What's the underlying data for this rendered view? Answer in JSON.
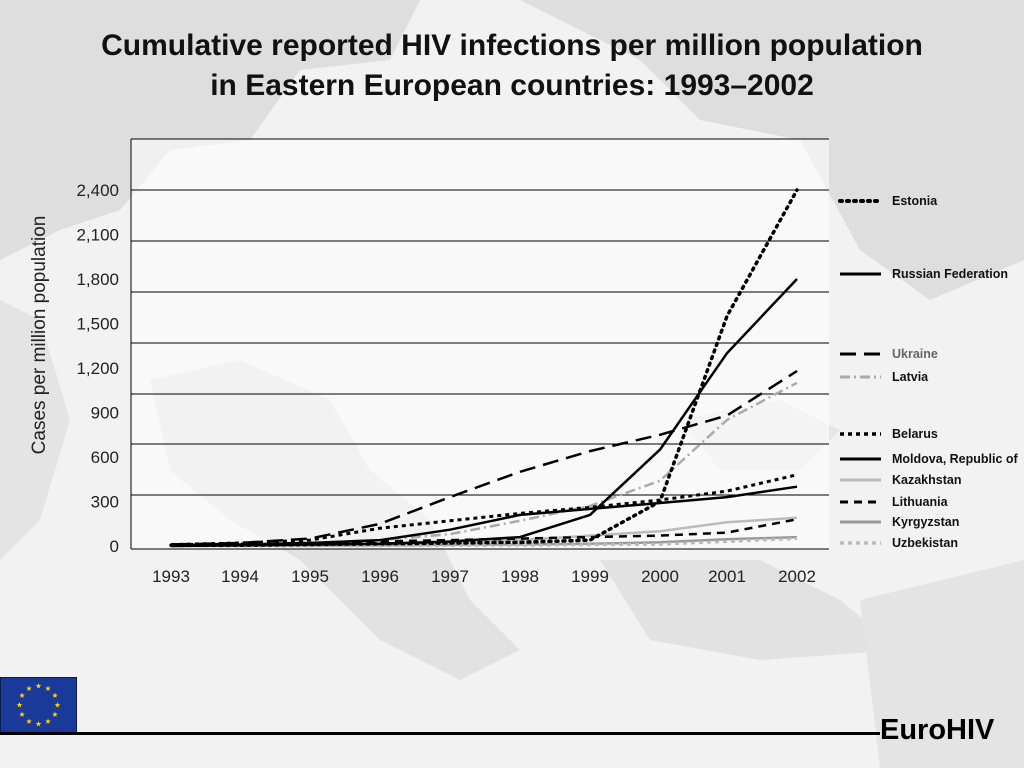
{
  "slide": {
    "title_line1": "Cumulative reported HIV infections per million population",
    "title_line2": "in Eastern European countries: 1993–2002",
    "footer_brand": "EuroHIV"
  },
  "chart_data": {
    "type": "line",
    "title": "Cumulative reported HIV infections per million population in Eastern European countries: 1993–2002",
    "xlabel": "",
    "ylabel": "Cases per million population",
    "x": [
      "1993",
      "1994",
      "1995",
      "1996",
      "1997",
      "1998",
      "1999",
      "2000",
      "2001",
      "2002"
    ],
    "y_ticks": [
      0,
      300,
      600,
      900,
      1200,
      1500,
      1800,
      2100,
      2400
    ],
    "y_tick_labels": [
      "0",
      "300",
      "600",
      "900",
      "1,200",
      "1,500",
      "1,800",
      "2,100",
      "2,400"
    ],
    "ylim": [
      0,
      2400
    ],
    "grid": true,
    "legend_position": "right",
    "series": [
      {
        "name": "Estonia",
        "color": "#000000",
        "dash": "dotted",
        "values": [
          5,
          5,
          10,
          15,
          20,
          25,
          40,
          300,
          1550,
          2400
        ]
      },
      {
        "name": "Russian Federation",
        "color": "#000000",
        "dash": "solid",
        "values": [
          0,
          5,
          10,
          15,
          30,
          60,
          210,
          650,
          1300,
          1800
        ]
      },
      {
        "name": "Ukraine",
        "color": "#000000",
        "dash": "longdash",
        "values": [
          10,
          20,
          50,
          150,
          330,
          500,
          640,
          750,
          880,
          1180
        ]
      },
      {
        "name": "Latvia",
        "color": "#aaaaaa",
        "dash": "dashdot",
        "values": [
          5,
          10,
          20,
          40,
          80,
          170,
          270,
          440,
          850,
          1100
        ]
      },
      {
        "name": "Belarus",
        "color": "#000000",
        "dash": "shortdash",
        "values": [
          10,
          20,
          40,
          120,
          170,
          220,
          260,
          310,
          370,
          480
        ]
      },
      {
        "name": "Moldova, Republic of",
        "color": "#000000",
        "dash": "solid",
        "values": [
          5,
          10,
          20,
          40,
          110,
          210,
          250,
          290,
          330,
          400
        ]
      },
      {
        "name": "Kazakhstan",
        "color": "#bbbbbb",
        "dash": "solid",
        "values": [
          2,
          5,
          10,
          15,
          25,
          40,
          70,
          100,
          160,
          190
        ]
      },
      {
        "name": "Lithuania",
        "color": "#000000",
        "dash": "mediumdash",
        "values": [
          10,
          15,
          20,
          30,
          40,
          50,
          60,
          70,
          90,
          180
        ]
      },
      {
        "name": "Kyrgyzstan",
        "color": "#999999",
        "dash": "solid",
        "values": [
          1,
          2,
          3,
          5,
          8,
          10,
          15,
          25,
          45,
          60
        ]
      },
      {
        "name": "Uzbekistan",
        "color": "#bbbbbb",
        "dash": "shortdash",
        "values": [
          1,
          1,
          2,
          3,
          4,
          5,
          8,
          12,
          30,
          50
        ]
      }
    ]
  }
}
